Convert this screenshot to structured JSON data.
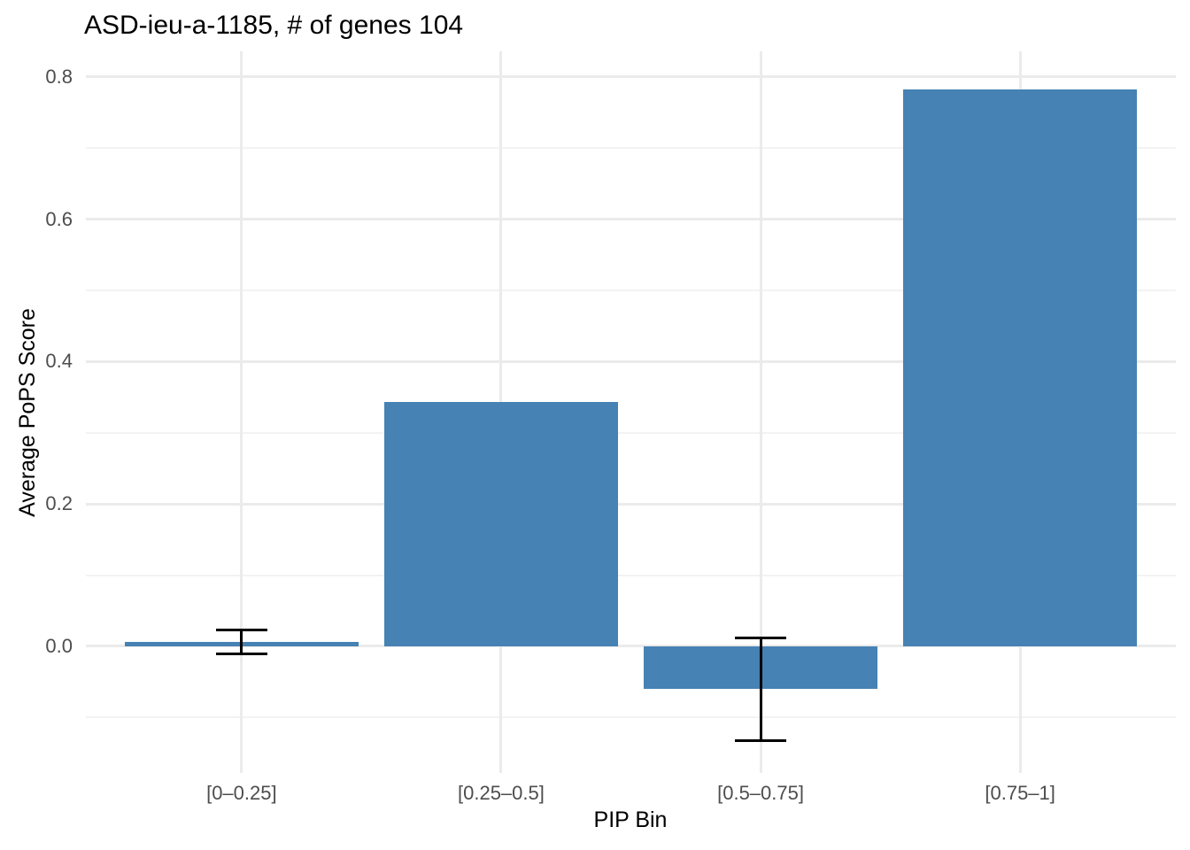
{
  "chart_data": {
    "type": "bar",
    "title": "ASD-ieu-a-1185, # of genes 104",
    "xlabel": "PIP Bin",
    "ylabel": "Average PoPS Score",
    "categories": [
      "[0–0.25]",
      "[0.25–0.5]",
      "[0.5–0.75]",
      "[0.75–1]"
    ],
    "values": [
      0.006,
      0.343,
      -0.06,
      0.783
    ],
    "error_bars": [
      {
        "low": -0.011,
        "high": 0.023
      },
      null,
      {
        "low": -0.132,
        "high": 0.012
      },
      null
    ],
    "ylim": [
      -0.178,
      0.836
    ],
    "yticks": [
      0.0,
      0.2,
      0.4,
      0.6,
      0.8
    ],
    "ytick_labels": [
      "0.0",
      "0.2",
      "0.4",
      "0.6",
      "0.8"
    ],
    "yticks_minor": [
      -0.1,
      0.1,
      0.3,
      0.5,
      0.7
    ],
    "bar_color": "#4682b4",
    "error_bar_color": "#000000",
    "grid": "major+minor, no axis lines, no tick marks",
    "legend": "none",
    "bar_width_fraction": 0.9,
    "error_bar_cap_width_fraction": 0.2
  }
}
